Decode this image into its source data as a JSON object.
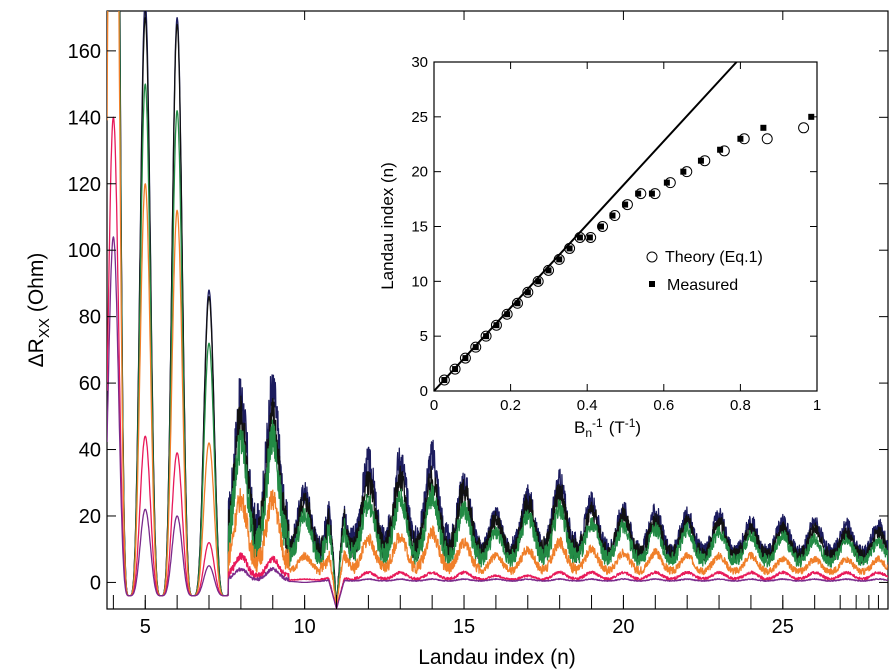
{
  "chart_data": [
    {
      "type": "line",
      "xlabel": "Landau index (n)",
      "ylabel_main": "ΔR",
      "ylabel_sub": "XX",
      "ylabel_unit": "(Ohm)",
      "xlim": [
        3.8,
        28.3
      ],
      "ylim": [
        -8,
        172
      ],
      "x_ticks": [
        5,
        10,
        15,
        20,
        25
      ],
      "y_ticks": [
        0,
        20,
        40,
        60,
        80,
        100,
        120,
        140,
        160
      ],
      "bottom_markers": [
        4,
        5,
        6,
        7,
        8,
        9,
        10,
        11,
        12,
        13,
        14,
        15,
        16,
        17,
        18,
        19,
        20,
        21,
        22,
        23,
        24,
        25,
        26,
        26.8,
        27.3,
        27.7,
        28.0
      ],
      "series": [
        {
          "color": "#1c1c5e",
          "amps": [
            420,
            175,
            170,
            88,
            55,
            57,
            27,
            34,
            36,
            37,
            38,
            30,
            20,
            26,
            30,
            24,
            22,
            21,
            20,
            20,
            18,
            18,
            18,
            17,
            17,
            16
          ],
          "base": 20
        },
        {
          "color": "#111111",
          "amps": [
            410,
            170,
            168,
            86,
            50,
            50,
            25,
            31,
            30,
            31,
            31,
            28,
            19,
            24,
            27,
            22,
            20,
            19,
            18,
            18,
            16,
            16,
            16,
            15,
            15,
            14
          ],
          "base": 18
        },
        {
          "color": "#238b45",
          "amps": [
            380,
            150,
            142,
            72,
            42,
            43,
            20,
            26,
            24,
            25,
            26,
            22,
            15,
            20,
            22,
            18,
            17,
            16,
            16,
            15,
            14,
            14,
            13,
            13,
            12,
            12
          ],
          "base": 14
        },
        {
          "color": "#f07f2a",
          "amps": [
            330,
            120,
            112,
            42,
            25,
            25,
            8,
            14,
            13,
            14,
            15,
            12,
            8,
            10,
            12,
            10,
            9,
            9,
            8,
            8,
            8,
            7,
            7,
            7,
            7,
            6
          ],
          "base": 7
        },
        {
          "color": "#e8195a",
          "amps": [
            140,
            44,
            39,
            12,
            8,
            7,
            1,
            2,
            3,
            3,
            3,
            3,
            2,
            2,
            3,
            3,
            3,
            3,
            3,
            3,
            3,
            3,
            3,
            3,
            3,
            3
          ],
          "base": 2
        },
        {
          "color": "#7b2a8b",
          "amps": [
            104,
            22,
            20,
            5,
            4,
            4,
            0,
            1,
            1,
            1,
            1,
            1,
            1,
            1,
            1,
            1,
            1,
            1,
            1,
            1,
            1,
            1,
            1,
            1,
            1,
            1
          ],
          "base": 1
        }
      ]
    },
    {
      "type": "scatter",
      "xlabel_main": "B",
      "xlabel_sub": "n",
      "xlabel_sup": "-1",
      "xlabel_unit": "(T",
      "xlabel_unit_sup": "-1",
      "xlabel_close": ")",
      "ylabel": "Landau index (n)",
      "xlim": [
        0,
        1
      ],
      "ylim": [
        0,
        30
      ],
      "x_ticks": [
        0,
        0.2,
        0.4,
        0.6,
        0.8,
        1
      ],
      "x_tick_labels": [
        "0",
        "0.2",
        "0.4",
        "0.6",
        "0.8",
        "1"
      ],
      "y_ticks": [
        0,
        5,
        10,
        15,
        20,
        25,
        30
      ],
      "line": {
        "x": [
          0,
          0.79
        ],
        "y": [
          0,
          30
        ]
      },
      "series": [
        {
          "name": "Theory (Eq.1)",
          "marker": "circle-open",
          "x": [
            0.027,
            0.055,
            0.082,
            0.109,
            0.136,
            0.163,
            0.191,
            0.218,
            0.245,
            0.272,
            0.299,
            0.327,
            0.354,
            0.381,
            0.409,
            0.44,
            0.472,
            0.505,
            0.54,
            0.577,
            0.617,
            0.66,
            0.707,
            0.758,
            0.81,
            0.87,
            0.965
          ],
          "y": [
            1,
            2,
            3,
            4,
            5,
            6,
            7,
            8,
            9,
            10,
            11,
            12,
            13,
            14,
            14,
            15,
            16,
            17,
            18,
            18,
            19,
            20,
            21,
            21.9,
            23,
            23,
            24
          ]
        },
        {
          "name": "Measured",
          "marker": "square-filled",
          "x": [
            0.027,
            0.055,
            0.082,
            0.109,
            0.136,
            0.163,
            0.191,
            0.218,
            0.245,
            0.272,
            0.299,
            0.327,
            0.354,
            0.381,
            0.407,
            0.436,
            0.466,
            0.499,
            0.533,
            0.569,
            0.608,
            0.651,
            0.697,
            0.747,
            0.8,
            0.86,
            0.985
          ],
          "y": [
            1,
            2,
            3,
            4,
            5,
            6,
            7,
            8,
            9,
            10,
            11,
            12,
            13,
            14,
            14,
            15,
            16,
            17,
            18,
            18,
            19,
            20,
            21,
            22,
            23,
            24,
            25
          ]
        }
      ]
    }
  ]
}
